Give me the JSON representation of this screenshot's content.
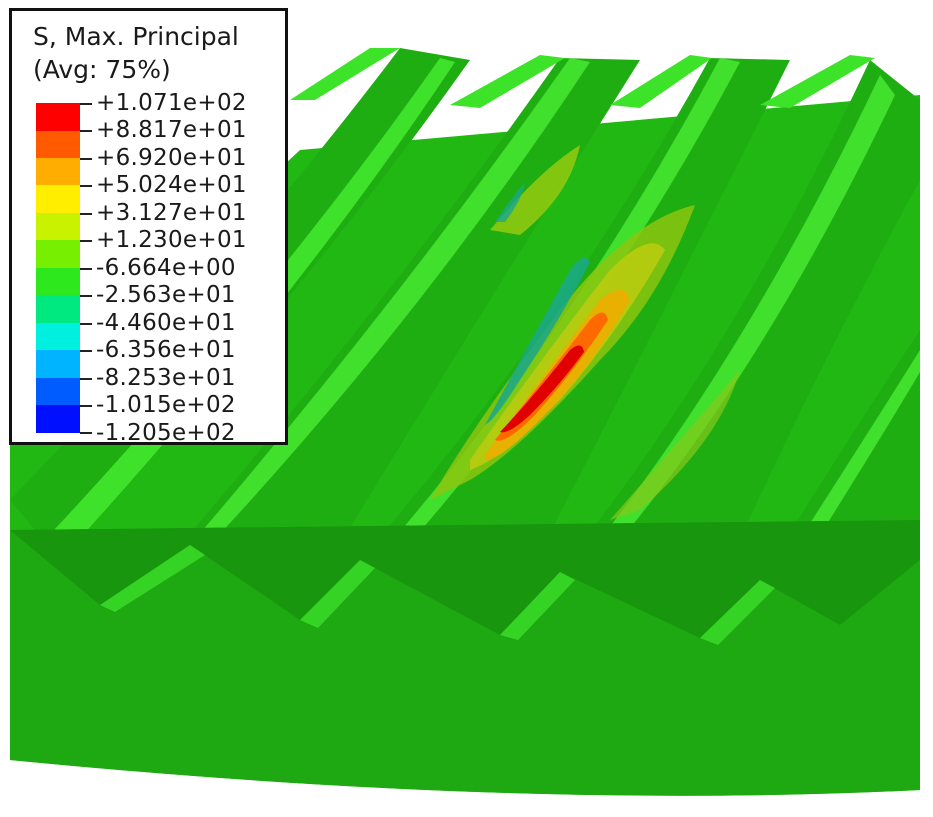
{
  "legend": {
    "title_line1": "S, Max. Principal",
    "title_line2": "(Avg: 75%)",
    "levels": [
      {
        "label": "+1.071e+02",
        "color": "#ff0000"
      },
      {
        "label": "+8.817e+01",
        "color": "#ff5a00"
      },
      {
        "label": "+6.920e+01",
        "color": "#ffae00"
      },
      {
        "label": "+5.024e+01",
        "color": "#ffee00"
      },
      {
        "label": "+3.127e+01",
        "color": "#c9f200"
      },
      {
        "label": "+1.230e+01",
        "color": "#77ef00"
      },
      {
        "label": "-6.664e+00",
        "color": "#2de81c"
      },
      {
        "label": "-2.563e+01",
        "color": "#00e880"
      },
      {
        "label": "-4.460e+01",
        "color": "#00f0df"
      },
      {
        "label": "-6.356e+01",
        "color": "#00b4ff"
      },
      {
        "label": "-8.253e+01",
        "color": "#005cff"
      },
      {
        "label": "-1.015e+02",
        "color": "#0010ff"
      },
      {
        "label": "-1.205e+02",
        "color": null
      }
    ]
  },
  "colors": {
    "background": "#ffffff",
    "gear_body": "#1eaa10",
    "tooth_face": "#22c414",
    "tooth_top": "#3ee62a",
    "root": "#14900c"
  }
}
